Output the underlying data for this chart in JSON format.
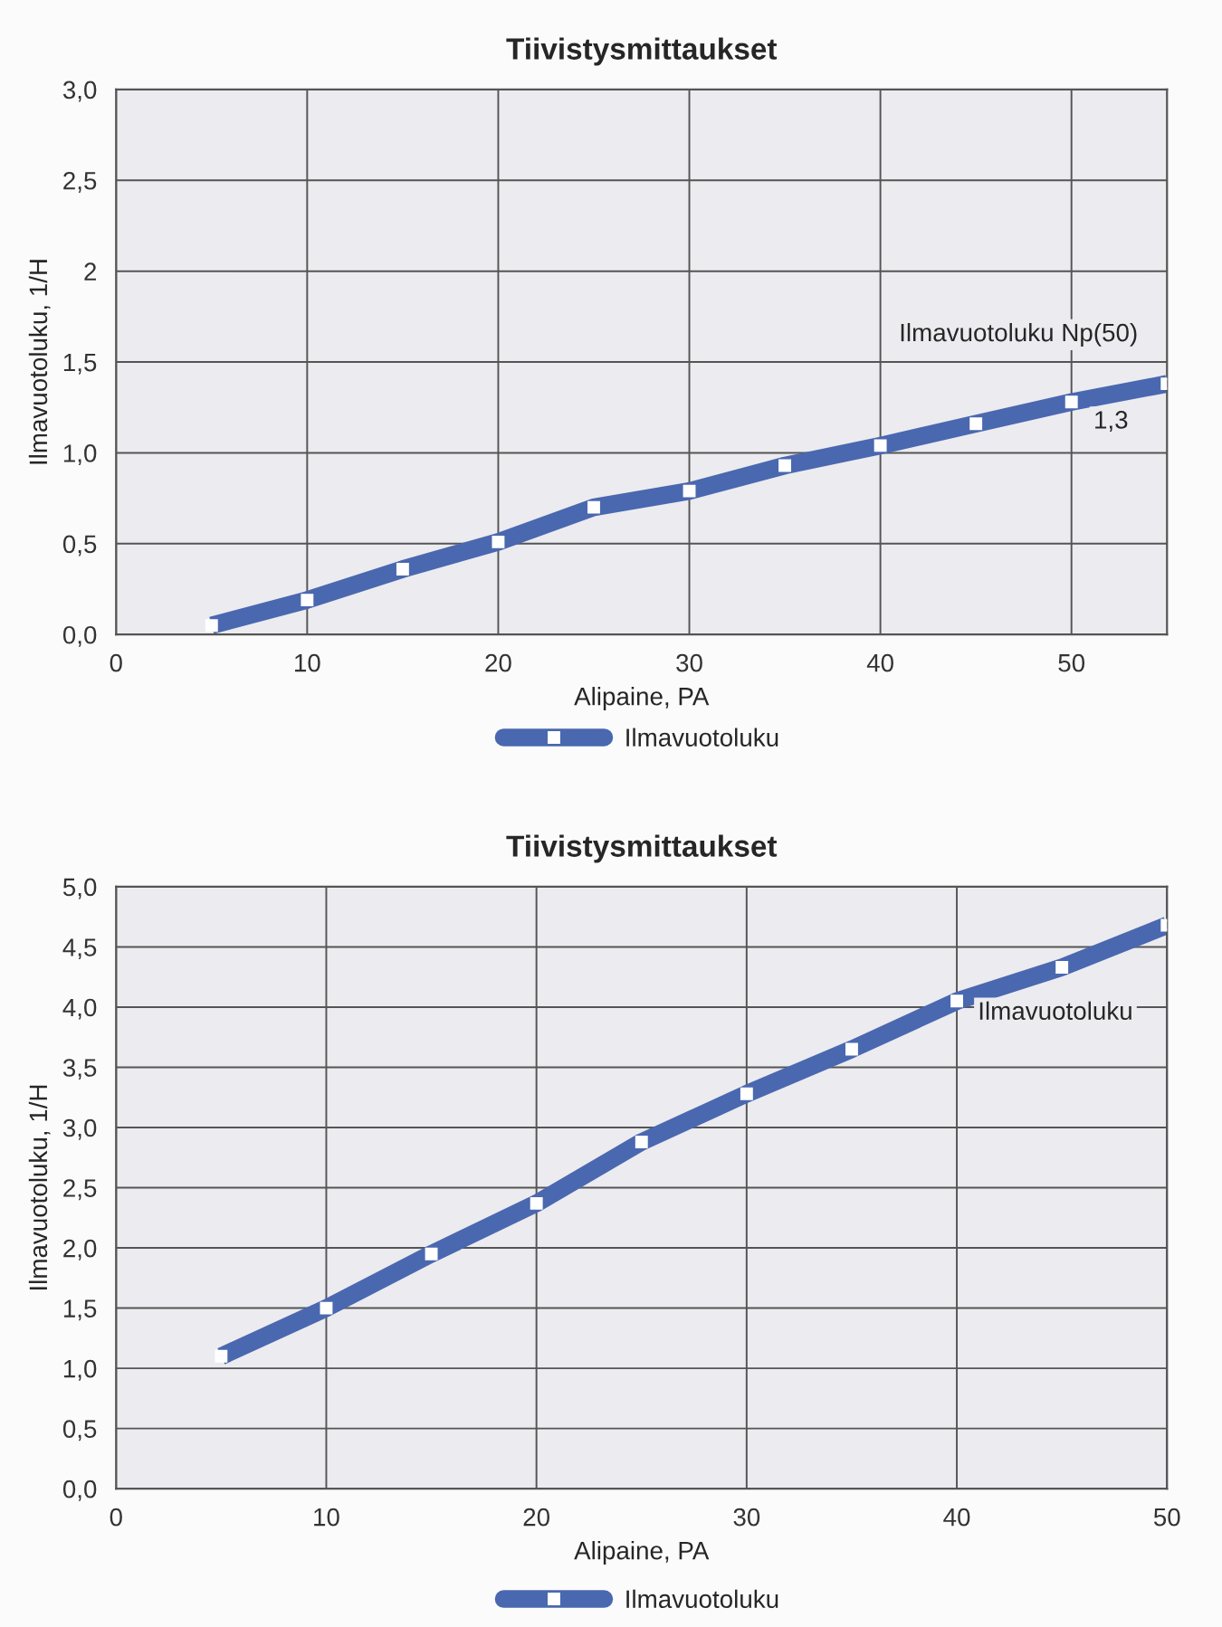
{
  "chart_data": [
    {
      "type": "line",
      "title": "Tiivistysmittaukset",
      "xlabel": "Alipaine, PA",
      "ylabel": "Ilmavuotoluku, 1/H",
      "x": [
        5,
        10,
        15,
        20,
        25,
        30,
        35,
        40,
        45,
        50,
        55
      ],
      "series": [
        {
          "name": "Ilmavuotoluku",
          "color": "#4a68b0",
          "values": [
            0.05,
            0.19,
            0.36,
            0.51,
            0.7,
            0.79,
            0.93,
            1.04,
            1.16,
            1.28,
            1.38
          ]
        }
      ],
      "xlim": [
        0,
        55
      ],
      "xticks": [
        0,
        10,
        20,
        30,
        40,
        50
      ],
      "ylim": [
        0,
        3
      ],
      "yticks": [
        {
          "value": 0,
          "label": "0,0"
        },
        {
          "value": 0.5,
          "label": "0,5"
        },
        {
          "value": 1,
          "label": "1,0"
        },
        {
          "value": 1.5,
          "label": "1,5"
        },
        2,
        {
          "value": 2.5,
          "label": "2,5"
        },
        {
          "value": 3,
          "label": "3,0"
        }
      ],
      "annotations": [
        "Ilmavuotoluku Np(50)",
        "1,3"
      ],
      "grid": true,
      "legend": "bottom",
      "marker": "square",
      "line_style": "solid"
    },
    {
      "type": "line",
      "title": "Tiivistysmittaukset",
      "xlabel": "Alipaine, PA",
      "ylabel": "Ilmavuotoluku, 1/H",
      "x": [
        5,
        10,
        15,
        20,
        25,
        30,
        35,
        40,
        45,
        50
      ],
      "series": [
        {
          "name": "Ilmavuotoluku",
          "color": "#4a68b0",
          "values": [
            1.1,
            1.5,
            1.95,
            2.37,
            2.88,
            3.28,
            3.65,
            4.05,
            4.33,
            4.68
          ]
        }
      ],
      "xlim": [
        0,
        50
      ],
      "xticks": [
        0,
        10,
        20,
        30,
        40,
        50
      ],
      "ylim": [
        0,
        5
      ],
      "yticks": [
        {
          "value": 0,
          "label": "0,0"
        },
        {
          "value": 0.5,
          "label": "0,5"
        },
        {
          "value": 1,
          "label": "1,0"
        },
        {
          "value": 1.5,
          "label": "1,5"
        },
        {
          "value": 2,
          "label": "2,0"
        },
        {
          "value": 2.5,
          "label": "2,5"
        },
        {
          "value": 3,
          "label": "3,0"
        },
        {
          "value": 3.5,
          "label": "3,5"
        },
        {
          "value": 4,
          "label": "4,0"
        },
        {
          "value": 4.5,
          "label": "4,5"
        },
        {
          "value": 5,
          "label": "5,0"
        }
      ],
      "annotations": [
        "Ilmavuotoluku"
      ],
      "grid": true,
      "legend": "bottom",
      "marker": "square",
      "line_style": "solid"
    }
  ]
}
